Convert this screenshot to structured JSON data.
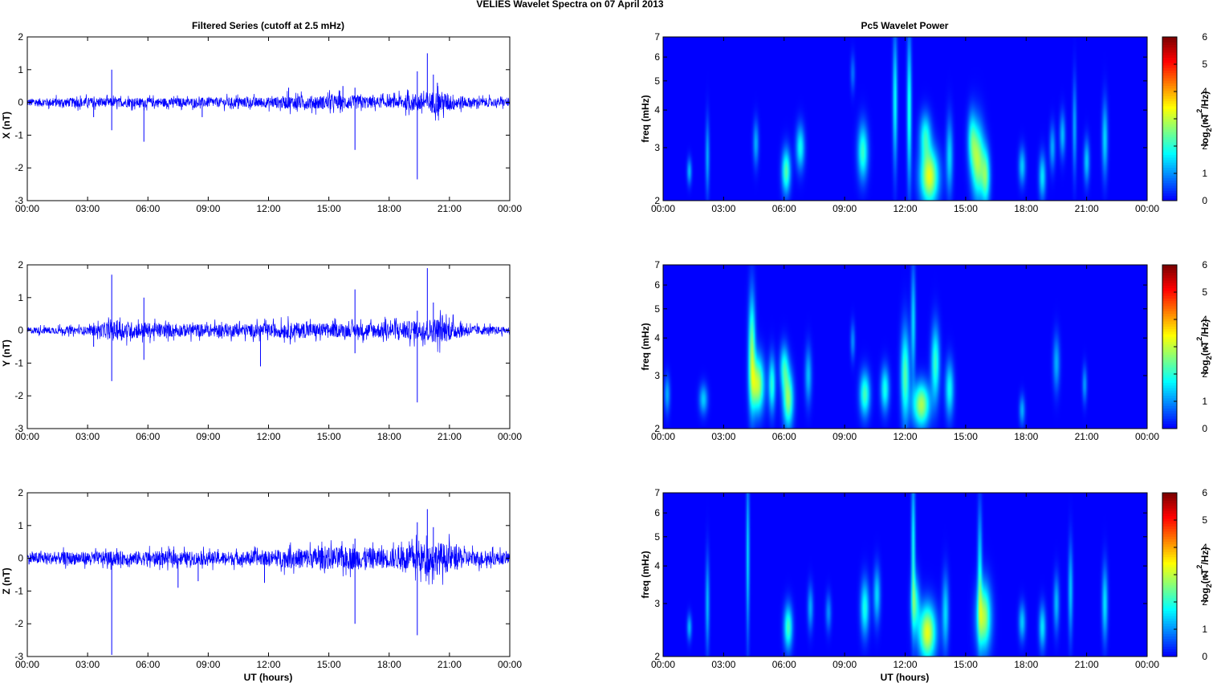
{
  "figure": {
    "suptitle": "VELIES Wavelet Spectra on 07 April     2013",
    "left_title": "Filtered Series (cutoff at 2.5 mHz)",
    "right_title": "Pc5 Wavelet Power",
    "xlabel": "UT (hours)",
    "spectra_ylabel": "freq (mHz)",
    "colorbar_label_main": "log",
    "colorbar_label_sub": "2",
    "colorbar_label_rest": "(nT",
    "colorbar_label_sup": "2",
    "colorbar_label_end": "/Hz)"
  },
  "chart_data": [
    {
      "type": "line",
      "component": "X",
      "ylabel": "X (nT)",
      "ylim": [
        -3,
        2
      ],
      "yticks": [
        "-3",
        "-2",
        "-1",
        "0",
        "1",
        "2"
      ],
      "xlim_hours": [
        0,
        24
      ],
      "xticks": [
        "00:00",
        "03:00",
        "06:00",
        "09:00",
        "12:00",
        "15:00",
        "18:00",
        "21:00",
        "00:00"
      ],
      "color": "#0000ff",
      "noise_amplitude_nT": [
        [
          0,
          0.12
        ],
        [
          3,
          0.15
        ],
        [
          4,
          0.14
        ],
        [
          8,
          0.14
        ],
        [
          12,
          0.16
        ],
        [
          13,
          0.2
        ],
        [
          16,
          0.22
        ],
        [
          18,
          0.15
        ],
        [
          19.5,
          0.3
        ],
        [
          20.5,
          0.35
        ],
        [
          22,
          0.15
        ],
        [
          24,
          0.12
        ]
      ],
      "spikes": [
        [
          3.3,
          -0.45
        ],
        [
          4.2,
          1.0
        ],
        [
          4.2,
          -0.85
        ],
        [
          5.8,
          -1.2
        ],
        [
          8.7,
          -0.45
        ],
        [
          13.0,
          0.45
        ],
        [
          15.7,
          0.5
        ],
        [
          16.3,
          -1.45
        ],
        [
          16.3,
          0.45
        ],
        [
          19.4,
          -2.35
        ],
        [
          19.4,
          0.95
        ],
        [
          19.9,
          1.5
        ],
        [
          20.2,
          0.85
        ],
        [
          20.4,
          0.6
        ]
      ]
    },
    {
      "type": "line",
      "component": "Y",
      "ylabel": "Y (nT)",
      "ylim": [
        -3,
        2
      ],
      "yticks": [
        "-3",
        "-2",
        "-1",
        "0",
        "1",
        "2"
      ],
      "xlim_hours": [
        0,
        24
      ],
      "xticks": [
        "00:00",
        "03:00",
        "06:00",
        "09:00",
        "12:00",
        "15:00",
        "18:00",
        "21:00",
        "00:00"
      ],
      "color": "#0000ff",
      "noise_amplitude_nT": [
        [
          0,
          0.1
        ],
        [
          3,
          0.12
        ],
        [
          4.5,
          0.3
        ],
        [
          5.5,
          0.25
        ],
        [
          7,
          0.2
        ],
        [
          12,
          0.2
        ],
        [
          13,
          0.25
        ],
        [
          16,
          0.2
        ],
        [
          19.5,
          0.3
        ],
        [
          20.5,
          0.4
        ],
        [
          22,
          0.15
        ],
        [
          24,
          0.1
        ]
      ],
      "spikes": [
        [
          3.3,
          -0.5
        ],
        [
          4.2,
          1.7
        ],
        [
          4.2,
          -1.55
        ],
        [
          5.8,
          1.0
        ],
        [
          5.8,
          -0.9
        ],
        [
          11.6,
          -1.1
        ],
        [
          16.3,
          1.25
        ],
        [
          16.3,
          -0.7
        ],
        [
          19.4,
          -2.2
        ],
        [
          19.4,
          0.6
        ],
        [
          19.9,
          1.9
        ],
        [
          20.2,
          0.85
        ]
      ]
    },
    {
      "type": "line",
      "component": "Z",
      "ylabel": "Z (nT)",
      "ylim": [
        -3,
        2
      ],
      "yticks": [
        "-3",
        "-2",
        "-1",
        "0",
        "1",
        "2"
      ],
      "xlim_hours": [
        0,
        24
      ],
      "xticks": [
        "00:00",
        "03:00",
        "06:00",
        "09:00",
        "12:00",
        "15:00",
        "18:00",
        "21:00",
        "00:00"
      ],
      "color": "#0000ff",
      "noise_amplitude_nT": [
        [
          0,
          0.18
        ],
        [
          3,
          0.2
        ],
        [
          6,
          0.22
        ],
        [
          9,
          0.2
        ],
        [
          12,
          0.22
        ],
        [
          13,
          0.3
        ],
        [
          16,
          0.35
        ],
        [
          18,
          0.3
        ],
        [
          19.5,
          0.45
        ],
        [
          20.5,
          0.5
        ],
        [
          22,
          0.25
        ],
        [
          24,
          0.18
        ]
      ],
      "spikes": [
        [
          4.2,
          -2.95
        ],
        [
          7.5,
          -0.9
        ],
        [
          8.5,
          -0.7
        ],
        [
          11.8,
          -0.75
        ],
        [
          16.3,
          -2.0
        ],
        [
          16.3,
          0.6
        ],
        [
          19.4,
          -2.35
        ],
        [
          19.4,
          1.1
        ],
        [
          19.9,
          1.5
        ],
        [
          20.2,
          0.95
        ]
      ]
    },
    {
      "type": "heatmap",
      "component": "X",
      "ylabel": "freq (mHz)",
      "y_scale": "log",
      "ylim_mHz": [
        2,
        7
      ],
      "yticks": [
        "2",
        "3",
        "4",
        "5",
        "6",
        "7"
      ],
      "xlim_hours": [
        0,
        24
      ],
      "xticks": [
        "00:00",
        "03:00",
        "06:00",
        "09:00",
        "12:00",
        "15:00",
        "18:00",
        "21:00",
        "00:00"
      ],
      "colorbar_range": [
        0,
        6
      ],
      "colorbar_ticks": [
        "0",
        "1",
        "2",
        "3",
        "4",
        "5",
        "6"
      ],
      "colormap": "jet",
      "blobs": [
        {
          "t": 1.3,
          "f": 2.5,
          "sf": 0.07,
          "st": 0.08,
          "p": 1.3
        },
        {
          "t": 2.2,
          "f": 2.8,
          "sf": 0.2,
          "st": 0.07,
          "p": 1.2
        },
        {
          "t": 4.6,
          "f": 3.1,
          "sf": 0.12,
          "st": 0.1,
          "p": 1.2
        },
        {
          "t": 6.1,
          "f": 2.5,
          "sf": 0.12,
          "st": 0.15,
          "p": 2.3
        },
        {
          "t": 6.8,
          "f": 3.0,
          "sf": 0.12,
          "st": 0.15,
          "p": 1.8
        },
        {
          "t": 9.4,
          "f": 5.3,
          "sf": 0.1,
          "st": 0.08,
          "p": 0.8
        },
        {
          "t": 9.9,
          "f": 2.9,
          "sf": 0.15,
          "st": 0.18,
          "p": 2.1
        },
        {
          "t": 11.5,
          "f": 4.3,
          "sf": 0.35,
          "st": 0.08,
          "p": 1.8
        },
        {
          "t": 12.2,
          "f": 4.0,
          "sf": 0.4,
          "st": 0.08,
          "p": 2.0
        },
        {
          "t": 13.2,
          "f": 2.4,
          "sf": 0.15,
          "st": 0.32,
          "p": 3.3
        },
        {
          "t": 13.0,
          "f": 3.3,
          "sf": 0.12,
          "st": 0.2,
          "p": 1.8
        },
        {
          "t": 14.2,
          "f": 2.8,
          "sf": 0.2,
          "st": 0.12,
          "p": 1.5
        },
        {
          "t": 15.6,
          "f": 2.7,
          "sf": 0.2,
          "st": 0.22,
          "p": 2.8
        },
        {
          "t": 16.0,
          "f": 2.4,
          "sf": 0.15,
          "st": 0.15,
          "p": 2.2
        },
        {
          "t": 15.3,
          "f": 3.2,
          "sf": 0.15,
          "st": 0.15,
          "p": 1.6
        },
        {
          "t": 17.8,
          "f": 2.6,
          "sf": 0.1,
          "st": 0.12,
          "p": 1.4
        },
        {
          "t": 18.8,
          "f": 2.4,
          "sf": 0.12,
          "st": 0.12,
          "p": 1.6
        },
        {
          "t": 19.3,
          "f": 3.0,
          "sf": 0.12,
          "st": 0.1,
          "p": 1.2
        },
        {
          "t": 19.8,
          "f": 3.3,
          "sf": 0.12,
          "st": 0.1,
          "p": 1.3
        },
        {
          "t": 20.4,
          "f": 3.5,
          "sf": 0.25,
          "st": 0.07,
          "p": 1.2
        },
        {
          "t": 21.0,
          "f": 2.7,
          "sf": 0.12,
          "st": 0.1,
          "p": 1.4
        },
        {
          "t": 21.9,
          "f": 3.2,
          "sf": 0.2,
          "st": 0.1,
          "p": 1.5
        }
      ]
    },
    {
      "type": "heatmap",
      "component": "Y",
      "ylabel": "freq (mHz)",
      "y_scale": "log",
      "ylim_mHz": [
        2,
        7
      ],
      "yticks": [
        "2",
        "3",
        "4",
        "5",
        "6",
        "7"
      ],
      "xlim_hours": [
        0,
        24
      ],
      "xticks": [
        "00:00",
        "03:00",
        "06:00",
        "09:00",
        "12:00",
        "15:00",
        "18:00",
        "21:00",
        "00:00"
      ],
      "colorbar_range": [
        0,
        6
      ],
      "colorbar_ticks": [
        "0",
        "1",
        "2",
        "3",
        "4",
        "5",
        "6"
      ],
      "colormap": "jet",
      "blobs": [
        {
          "t": 0.2,
          "f": 2.6,
          "sf": 0.1,
          "st": 0.1,
          "p": 1.2
        },
        {
          "t": 2.0,
          "f": 2.5,
          "sf": 0.08,
          "st": 0.15,
          "p": 1.4
        },
        {
          "t": 4.4,
          "f": 3.6,
          "sf": 0.3,
          "st": 0.12,
          "p": 2.6
        },
        {
          "t": 4.7,
          "f": 2.8,
          "sf": 0.15,
          "st": 0.22,
          "p": 3.0
        },
        {
          "t": 5.4,
          "f": 2.8,
          "sf": 0.15,
          "st": 0.12,
          "p": 2.0
        },
        {
          "t": 6.2,
          "f": 2.5,
          "sf": 0.15,
          "st": 0.18,
          "p": 2.7
        },
        {
          "t": 6.0,
          "f": 3.2,
          "sf": 0.12,
          "st": 0.15,
          "p": 1.8
        },
        {
          "t": 7.2,
          "f": 3.0,
          "sf": 0.15,
          "st": 0.12,
          "p": 1.3
        },
        {
          "t": 9.4,
          "f": 3.9,
          "sf": 0.1,
          "st": 0.08,
          "p": 1.0
        },
        {
          "t": 10.0,
          "f": 2.6,
          "sf": 0.12,
          "st": 0.18,
          "p": 2.2
        },
        {
          "t": 11.0,
          "f": 2.7,
          "sf": 0.12,
          "st": 0.15,
          "p": 1.9
        },
        {
          "t": 12.0,
          "f": 3.0,
          "sf": 0.25,
          "st": 0.15,
          "p": 2.3
        },
        {
          "t": 12.4,
          "f": 4.5,
          "sf": 0.3,
          "st": 0.08,
          "p": 1.5
        },
        {
          "t": 12.8,
          "f": 2.4,
          "sf": 0.12,
          "st": 0.3,
          "p": 2.9
        },
        {
          "t": 13.5,
          "f": 3.3,
          "sf": 0.2,
          "st": 0.15,
          "p": 2.1
        },
        {
          "t": 14.2,
          "f": 2.7,
          "sf": 0.15,
          "st": 0.15,
          "p": 1.8
        },
        {
          "t": 17.8,
          "f": 2.3,
          "sf": 0.08,
          "st": 0.1,
          "p": 1.2
        },
        {
          "t": 19.5,
          "f": 3.3,
          "sf": 0.15,
          "st": 0.12,
          "p": 1.2
        },
        {
          "t": 20.9,
          "f": 2.8,
          "sf": 0.1,
          "st": 0.08,
          "p": 1.1
        }
      ]
    },
    {
      "type": "heatmap",
      "component": "Z",
      "ylabel": "freq (mHz)",
      "y_scale": "log",
      "ylim_mHz": [
        2,
        7
      ],
      "yticks": [
        "2",
        "3",
        "4",
        "5",
        "6",
        "7"
      ],
      "xlim_hours": [
        0,
        24
      ],
      "xticks": [
        "00:00",
        "03:00",
        "06:00",
        "09:00",
        "12:00",
        "15:00",
        "18:00",
        "21:00",
        "00:00"
      ],
      "colorbar_range": [
        0,
        6
      ],
      "colorbar_ticks": [
        "0",
        "1",
        "2",
        "3",
        "4",
        "5",
        "6"
      ],
      "colormap": "jet",
      "blobs": [
        {
          "t": 1.3,
          "f": 2.5,
          "sf": 0.07,
          "st": 0.08,
          "p": 1.3
        },
        {
          "t": 2.2,
          "f": 3.0,
          "sf": 0.25,
          "st": 0.07,
          "p": 1.3
        },
        {
          "t": 4.2,
          "f": 4.3,
          "sf": 0.45,
          "st": 0.06,
          "p": 1.5
        },
        {
          "t": 6.2,
          "f": 2.5,
          "sf": 0.12,
          "st": 0.15,
          "p": 2.2
        },
        {
          "t": 7.3,
          "f": 2.9,
          "sf": 0.12,
          "st": 0.1,
          "p": 1.2
        },
        {
          "t": 8.2,
          "f": 2.8,
          "sf": 0.1,
          "st": 0.1,
          "p": 1.0
        },
        {
          "t": 10.0,
          "f": 2.9,
          "sf": 0.15,
          "st": 0.15,
          "p": 1.9
        },
        {
          "t": 10.6,
          "f": 3.2,
          "sf": 0.15,
          "st": 0.12,
          "p": 1.5
        },
        {
          "t": 12.4,
          "f": 4.5,
          "sf": 0.4,
          "st": 0.07,
          "p": 1.8
        },
        {
          "t": 13.1,
          "f": 2.4,
          "sf": 0.15,
          "st": 0.3,
          "p": 3.3
        },
        {
          "t": 12.5,
          "f": 3.0,
          "sf": 0.15,
          "st": 0.15,
          "p": 1.8
        },
        {
          "t": 14.0,
          "f": 2.8,
          "sf": 0.2,
          "st": 0.12,
          "p": 1.5
        },
        {
          "t": 15.9,
          "f": 2.7,
          "sf": 0.18,
          "st": 0.25,
          "p": 2.9
        },
        {
          "t": 15.7,
          "f": 3.8,
          "sf": 0.35,
          "st": 0.08,
          "p": 1.6
        },
        {
          "t": 17.8,
          "f": 2.6,
          "sf": 0.1,
          "st": 0.12,
          "p": 1.4
        },
        {
          "t": 18.8,
          "f": 2.5,
          "sf": 0.12,
          "st": 0.12,
          "p": 1.6
        },
        {
          "t": 19.5,
          "f": 3.0,
          "sf": 0.15,
          "st": 0.1,
          "p": 1.3
        },
        {
          "t": 20.2,
          "f": 3.3,
          "sf": 0.25,
          "st": 0.08,
          "p": 1.4
        },
        {
          "t": 21.9,
          "f": 3.0,
          "sf": 0.2,
          "st": 0.1,
          "p": 1.6
        }
      ]
    }
  ]
}
